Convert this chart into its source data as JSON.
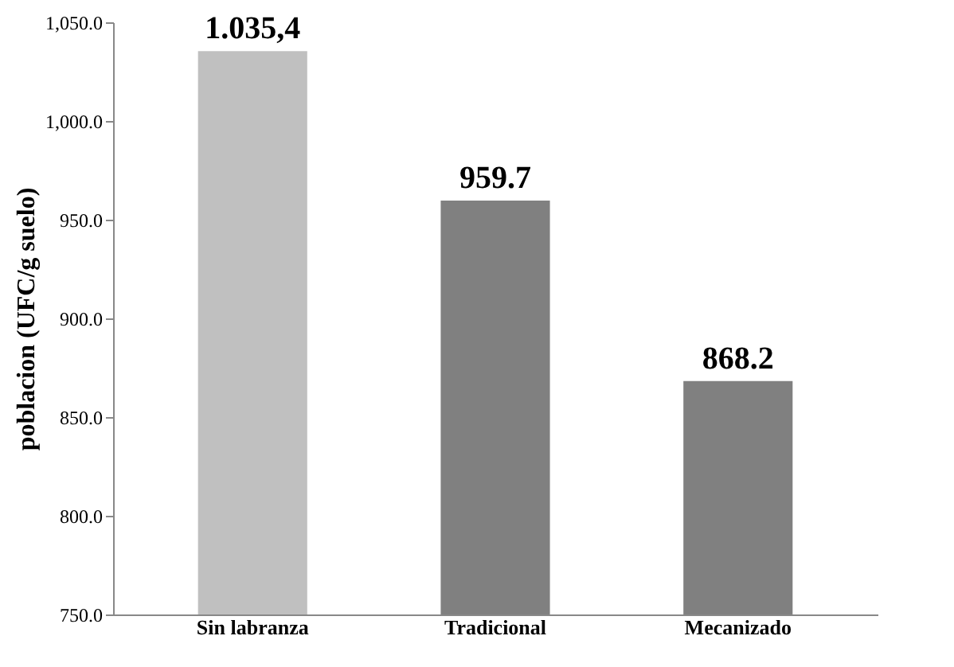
{
  "chart_data": {
    "type": "bar",
    "ylabel": "poblacion (UFC/g suelo)",
    "categories": [
      "Sin labranza",
      "Tradicional",
      "Mecanizado"
    ],
    "values": [
      1035.4,
      959.7,
      868.2
    ],
    "colors": [
      "#c0c0c0",
      "#808080",
      "#808080"
    ],
    "value_labels": [
      "1.035,4",
      "959.7",
      "868.2"
    ],
    "ylim": [
      750,
      1050
    ],
    "yticks": [
      {
        "value": 750,
        "label": "750.0"
      },
      {
        "value": 800,
        "label": "800.0"
      },
      {
        "value": 850,
        "label": "850.0"
      },
      {
        "value": 900,
        "label": "900.0"
      },
      {
        "value": 950,
        "label": "950.0"
      },
      {
        "value": 1000,
        "label": "1,000.0"
      },
      {
        "value": 1050,
        "label": "1,050.0"
      }
    ],
    "grid": false
  }
}
